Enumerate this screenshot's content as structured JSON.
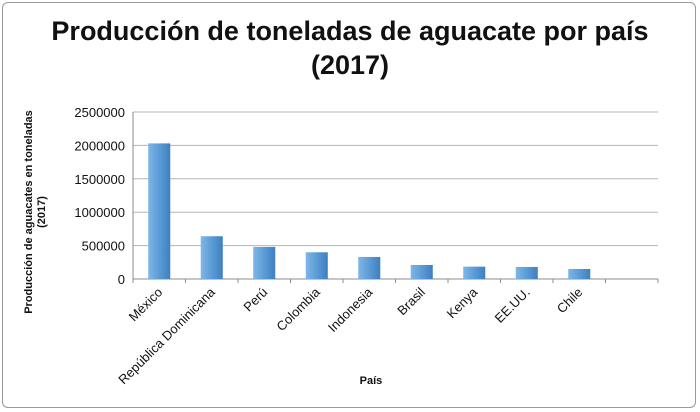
{
  "chart_data": {
    "type": "bar",
    "title": "Producción de toneladas de aguacate por país (2017)",
    "xlabel": "País",
    "ylabel": "Producción de aguacates en toneladas (2017)",
    "ylabel_lines": [
      "Producción de aguacates en toneladas",
      "(2017)"
    ],
    "categories": [
      "México",
      "República Dominicana",
      "Perú",
      "Colombia",
      "Indonesia",
      "Brasil",
      "Kenya",
      "EE.UU.",
      "Chile",
      ""
    ],
    "values": [
      2030000,
      640000,
      480000,
      400000,
      330000,
      210000,
      185000,
      180000,
      150000,
      null
    ],
    "ylim": [
      0,
      2500000
    ],
    "yticks": [
      "0",
      "500000",
      "1000000",
      "1500000",
      "2000000",
      "2500000"
    ],
    "grid": true,
    "bar_color": "#5b9bd5"
  }
}
